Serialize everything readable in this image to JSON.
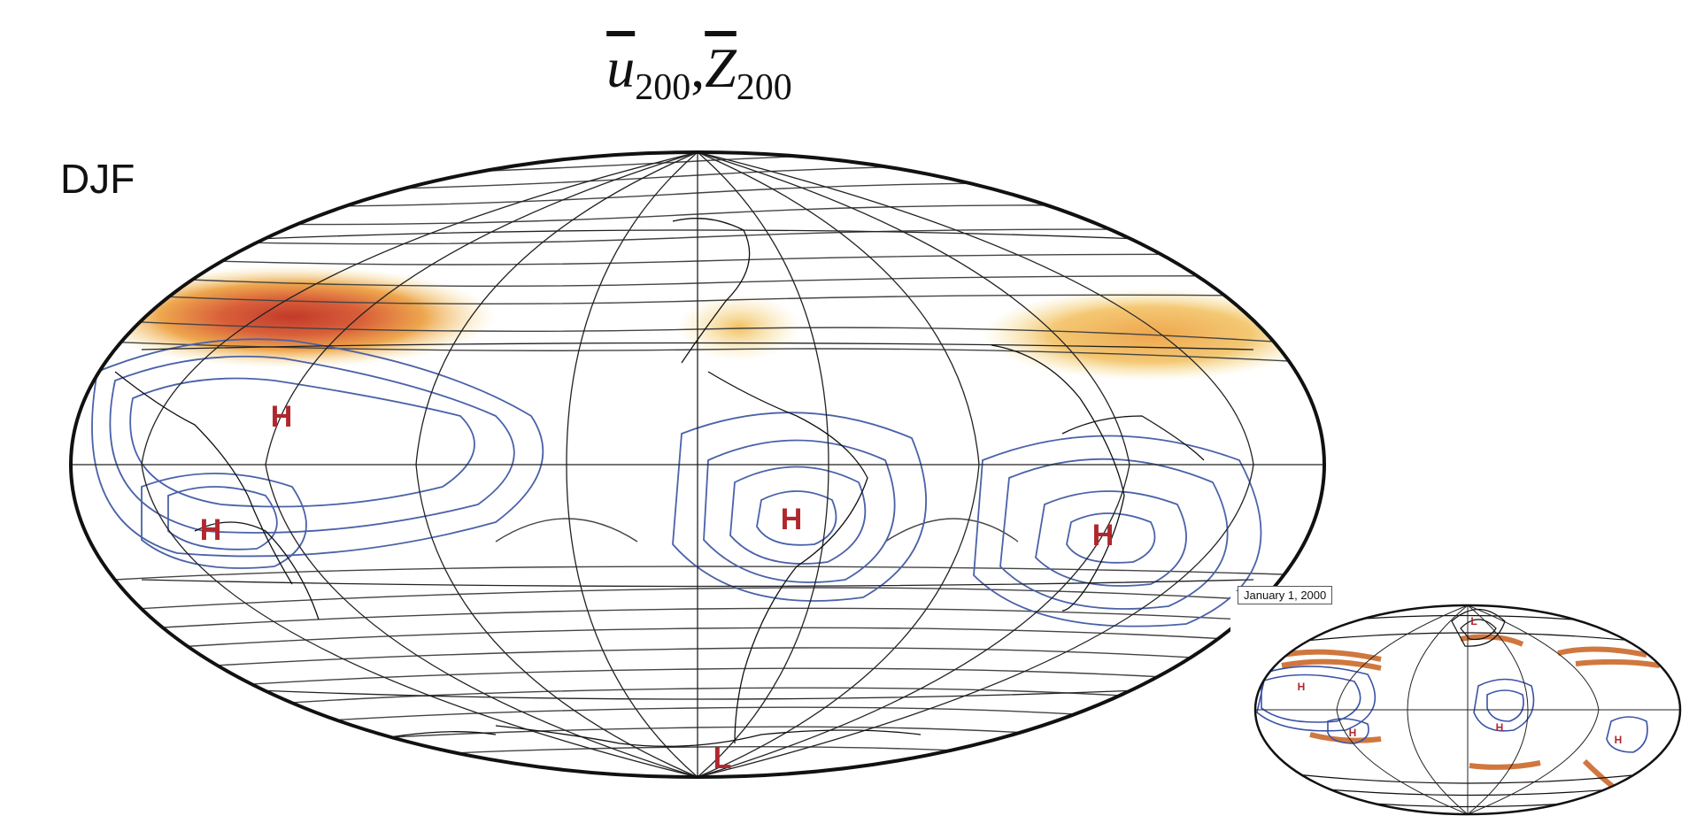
{
  "title": {
    "u_symbol": "u",
    "u_sub": "200",
    "separator": ",",
    "z_symbol": "Z",
    "z_sub": "200"
  },
  "season_label": "DJF",
  "main_map": {
    "projection": "Hammer",
    "pressure_markers": [
      "H",
      "H",
      "H",
      "H",
      "L"
    ],
    "colors": {
      "jet_low": "#f5d98a",
      "jet_mid": "#e69a4a",
      "jet_high": "#c23a2a",
      "blue_contours": "#4a62a8",
      "black_contours": "#444444",
      "marker": "#b0272e"
    }
  },
  "inset_map": {
    "date_label": "January 1, 2000",
    "pressure_markers": [
      "L",
      "H",
      "H",
      "H",
      "H"
    ],
    "colors": {
      "jet": "#c8601e",
      "blue_contours": "#3a52a6"
    }
  }
}
